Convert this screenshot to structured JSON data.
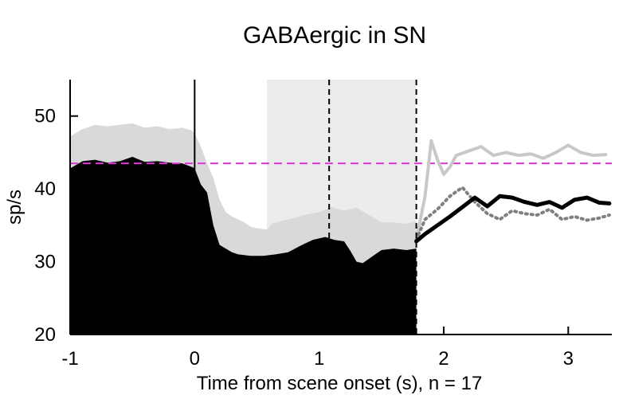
{
  "chart_data": {
    "type": "area",
    "title": "GABAergic in SN",
    "xlabel": "Time from scene onset (s), n = 17",
    "ylabel": "sp/s",
    "xlim": [
      -1,
      3.35
    ],
    "ylim": [
      20,
      55
    ],
    "xticks": [
      -1,
      0,
      1,
      2,
      3
    ],
    "yticks": [
      20,
      30,
      40,
      50
    ],
    "grid": false,
    "baseline": 43.5,
    "shaded_interval": [
      0.58,
      1.78
    ],
    "event_lines": [
      0,
      1.08,
      1.78
    ],
    "colors": {
      "upper_band": "#d9d9d9",
      "black_fill": "#000000",
      "baseline": "#d63ad6",
      "shaded": "#ececec",
      "light_line": "#c8c8c8",
      "black_line": "#000000",
      "dotted_line": "#808080"
    },
    "series": [
      {
        "values": [
          [
            -1,
            47.2
          ],
          [
            -0.9,
            48.2
          ],
          [
            -0.8,
            48.8
          ],
          [
            -0.7,
            48.6
          ],
          [
            -0.6,
            48.8
          ],
          [
            -0.5,
            49.0
          ],
          [
            -0.4,
            48.4
          ],
          [
            -0.3,
            48.6
          ],
          [
            -0.2,
            48.2
          ],
          [
            -0.1,
            48.4
          ],
          [
            -0.02,
            48.0
          ],
          [
            0.0,
            47.6
          ],
          [
            0.05,
            45.8
          ],
          [
            0.1,
            43.5
          ],
          [
            0.15,
            41.5
          ],
          [
            0.2,
            38.5
          ],
          [
            0.25,
            36.8
          ],
          [
            0.3,
            36.2
          ],
          [
            0.35,
            35.8
          ],
          [
            0.4,
            35.4
          ],
          [
            0.45,
            34.8
          ],
          [
            0.5,
            34.6
          ],
          [
            0.58,
            34.4
          ],
          [
            0.62,
            35.2
          ],
          [
            0.7,
            35.6
          ],
          [
            0.8,
            36.0
          ],
          [
            0.9,
            36.5
          ],
          [
            1.0,
            36.8
          ],
          [
            1.1,
            37.5
          ],
          [
            1.2,
            37.0
          ],
          [
            1.3,
            37.4
          ],
          [
            1.4,
            36.4
          ],
          [
            1.5,
            35.4
          ],
          [
            1.6,
            35.4
          ],
          [
            1.7,
            35.2
          ],
          [
            1.78,
            35.5
          ]
        ],
        "kind": "upper-band"
      },
      {
        "values": [
          [
            -1,
            42.8
          ],
          [
            -0.9,
            43.8
          ],
          [
            -0.8,
            44.0
          ],
          [
            -0.7,
            43.6
          ],
          [
            -0.6,
            43.8
          ],
          [
            -0.5,
            44.4
          ],
          [
            -0.4,
            43.7
          ],
          [
            -0.3,
            43.8
          ],
          [
            -0.2,
            43.6
          ],
          [
            -0.1,
            43.5
          ],
          [
            -0.02,
            43.0
          ],
          [
            0.0,
            42.8
          ],
          [
            0.05,
            40.6
          ],
          [
            0.1,
            39.5
          ],
          [
            0.15,
            35.0
          ],
          [
            0.2,
            32.3
          ],
          [
            0.25,
            31.8
          ],
          [
            0.3,
            31.3
          ],
          [
            0.35,
            31.0
          ],
          [
            0.45,
            30.8
          ],
          [
            0.55,
            30.8
          ],
          [
            0.65,
            31.0
          ],
          [
            0.75,
            31.3
          ],
          [
            0.85,
            32.2
          ],
          [
            0.95,
            33.0
          ],
          [
            1.05,
            33.4
          ],
          [
            1.12,
            33.0
          ],
          [
            1.2,
            32.8
          ],
          [
            1.25,
            31.5
          ],
          [
            1.3,
            30.0
          ],
          [
            1.35,
            29.8
          ],
          [
            1.4,
            30.4
          ],
          [
            1.5,
            31.6
          ],
          [
            1.6,
            31.8
          ],
          [
            1.7,
            31.6
          ],
          [
            1.78,
            31.8
          ]
        ],
        "kind": "black-area"
      },
      {
        "values": [
          [
            1.78,
            33.0
          ],
          [
            1.85,
            39.0
          ],
          [
            1.9,
            46.6
          ],
          [
            1.95,
            44.0
          ],
          [
            2.0,
            42.0
          ],
          [
            2.05,
            43.0
          ],
          [
            2.1,
            44.6
          ],
          [
            2.2,
            45.2
          ],
          [
            2.3,
            45.8
          ],
          [
            2.4,
            44.6
          ],
          [
            2.5,
            45.0
          ],
          [
            2.6,
            44.6
          ],
          [
            2.7,
            44.8
          ],
          [
            2.8,
            44.2
          ],
          [
            2.9,
            45.0
          ],
          [
            3.0,
            46.0
          ],
          [
            3.1,
            45.0
          ],
          [
            3.2,
            44.6
          ],
          [
            3.3,
            44.7
          ]
        ],
        "kind": "light-line"
      },
      {
        "values": [
          [
            1.78,
            32.8
          ],
          [
            1.85,
            33.8
          ],
          [
            1.95,
            35.0
          ],
          [
            2.05,
            36.2
          ],
          [
            2.15,
            37.5
          ],
          [
            2.25,
            38.8
          ],
          [
            2.35,
            37.6
          ],
          [
            2.45,
            39.0
          ],
          [
            2.55,
            38.8
          ],
          [
            2.65,
            38.2
          ],
          [
            2.75,
            37.8
          ],
          [
            2.85,
            38.2
          ],
          [
            2.95,
            37.4
          ],
          [
            3.05,
            38.5
          ],
          [
            3.15,
            38.8
          ],
          [
            3.25,
            38.1
          ],
          [
            3.33,
            38.0
          ]
        ],
        "kind": "black-line"
      },
      {
        "values": [
          [
            1.78,
            33.0
          ],
          [
            1.85,
            35.8
          ],
          [
            1.95,
            37.2
          ],
          [
            2.05,
            39.0
          ],
          [
            2.15,
            40.2
          ],
          [
            2.25,
            38.2
          ],
          [
            2.35,
            36.6
          ],
          [
            2.45,
            35.8
          ],
          [
            2.55,
            37.0
          ],
          [
            2.65,
            36.6
          ],
          [
            2.75,
            36.4
          ],
          [
            2.85,
            37.2
          ],
          [
            2.95,
            35.8
          ],
          [
            3.05,
            36.2
          ],
          [
            3.15,
            35.7
          ],
          [
            3.25,
            36.0
          ],
          [
            3.33,
            36.4
          ]
        ],
        "kind": "dotted-line"
      }
    ]
  }
}
